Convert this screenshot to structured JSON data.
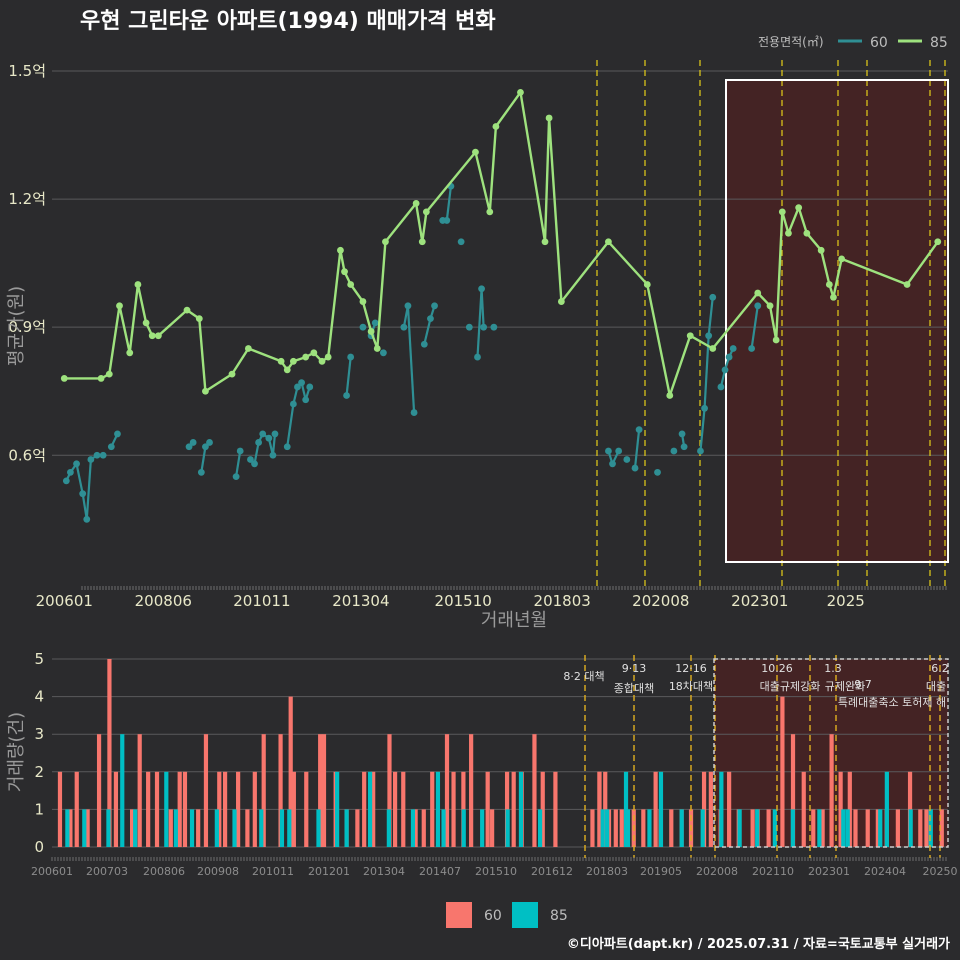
{
  "title": "우현 그린타운 아파트(1994) 매매가격 변화",
  "footer": "©디아파트(dapt.kr) / 2025.07.31 / 자료=국토교통부 실거래가",
  "colors": {
    "s60": "#2f8f94",
    "s85": "#9ee27e",
    "bar60": "#f8766d",
    "bar85": "#00bfc4",
    "policy": "#d8c21a",
    "highlight": "#5a1e1e"
  },
  "chart_data": [
    {
      "type": "line",
      "xlabel": "거래년월",
      "ylabel": "평균가(원)",
      "legend_title": "전용면적(㎡)",
      "legend_position": "top-right",
      "x_tick_labels": [
        "200601",
        "200806",
        "201011",
        "201304",
        "201510",
        "201803",
        "202008",
        "202301",
        "2025"
      ],
      "y_tick_labels": [
        "0.6억",
        "0.9억",
        "1.2억",
        "1.5억"
      ],
      "ylim": [
        0.35,
        1.55
      ],
      "series": [
        {
          "name": "60",
          "points": [
            [
              2006.05,
              0.54
            ],
            [
              2006.15,
              0.56
            ],
            [
              2006.3,
              0.58
            ],
            [
              2006.45,
              0.51
            ],
            [
              2006.55,
              0.45
            ],
            [
              2006.65,
              0.59
            ],
            [
              2006.8,
              0.6
            ],
            [
              2006.95,
              0.6
            ],
            [
              2007.15,
              0.62
            ],
            [
              2007.3,
              0.65
            ],
            [
              2009.05,
              0.62
            ],
            [
              2009.15,
              0.63
            ],
            [
              2009.35,
              0.56
            ],
            [
              2009.45,
              0.62
            ],
            [
              2009.55,
              0.63
            ],
            [
              2010.2,
              0.55
            ],
            [
              2010.3,
              0.61
            ],
            [
              2010.55,
              0.59
            ],
            [
              2010.65,
              0.58
            ],
            [
              2010.75,
              0.63
            ],
            [
              2010.85,
              0.65
            ],
            [
              2011.0,
              0.64
            ],
            [
              2011.1,
              0.6
            ],
            [
              2011.15,
              0.65
            ],
            [
              2011.45,
              0.62
            ],
            [
              2011.6,
              0.72
            ],
            [
              2011.7,
              0.76
            ],
            [
              2011.8,
              0.77
            ],
            [
              2011.9,
              0.73
            ],
            [
              2012.0,
              0.76
            ],
            [
              2012.9,
              0.74
            ],
            [
              2013.0,
              0.83
            ],
            [
              2013.3,
              0.9
            ],
            [
              2013.5,
              0.88
            ],
            [
              2013.6,
              0.91
            ],
            [
              2013.8,
              0.84
            ],
            [
              2014.3,
              0.9
            ],
            [
              2014.4,
              0.95
            ],
            [
              2014.55,
              0.7
            ],
            [
              2014.8,
              0.86
            ],
            [
              2014.95,
              0.92
            ],
            [
              2015.05,
              0.95
            ],
            [
              2015.25,
              1.15
            ],
            [
              2015.35,
              1.15
            ],
            [
              2015.45,
              1.23
            ],
            [
              2015.7,
              1.1
            ],
            [
              2015.9,
              0.9
            ],
            [
              2016.1,
              0.83
            ],
            [
              2016.2,
              0.99
            ],
            [
              2016.25,
              0.9
            ],
            [
              2016.5,
              0.9
            ],
            [
              2019.3,
              0.61
            ],
            [
              2019.4,
              0.58
            ],
            [
              2019.55,
              0.61
            ],
            [
              2019.75,
              0.59
            ],
            [
              2019.95,
              0.57
            ],
            [
              2020.05,
              0.66
            ],
            [
              2020.5,
              0.56
            ],
            [
              2020.9,
              0.61
            ],
            [
              2021.1,
              0.65
            ],
            [
              2021.15,
              0.62
            ],
            [
              2021.55,
              0.61
            ],
            [
              2021.65,
              0.71
            ],
            [
              2021.75,
              0.88
            ],
            [
              2021.85,
              0.97
            ],
            [
              2022.05,
              0.76
            ],
            [
              2022.15,
              0.8
            ],
            [
              2022.25,
              0.83
            ],
            [
              2022.35,
              0.85
            ],
            [
              2022.8,
              0.85
            ],
            [
              2022.95,
              0.95
            ]
          ]
        },
        {
          "name": "85",
          "points": [
            [
              2006.0,
              0.78
            ],
            [
              2006.9,
              0.78
            ],
            [
              2007.1,
              0.79
            ],
            [
              2007.35,
              0.95
            ],
            [
              2007.6,
              0.84
            ],
            [
              2007.8,
              1.0
            ],
            [
              2008.0,
              0.91
            ],
            [
              2008.15,
              0.88
            ],
            [
              2008.3,
              0.88
            ],
            [
              2009.0,
              0.94
            ],
            [
              2009.3,
              0.92
            ],
            [
              2009.45,
              0.75
            ],
            [
              2010.1,
              0.79
            ],
            [
              2010.5,
              0.85
            ],
            [
              2011.3,
              0.82
            ],
            [
              2011.45,
              0.8
            ],
            [
              2011.6,
              0.82
            ],
            [
              2011.9,
              0.83
            ],
            [
              2012.1,
              0.84
            ],
            [
              2012.3,
              0.82
            ],
            [
              2012.45,
              0.83
            ],
            [
              2012.75,
              1.08
            ],
            [
              2012.85,
              1.03
            ],
            [
              2013.0,
              1.0
            ],
            [
              2013.3,
              0.96
            ],
            [
              2013.5,
              0.89
            ],
            [
              2013.65,
              0.85
            ],
            [
              2013.85,
              1.1
            ],
            [
              2014.6,
              1.19
            ],
            [
              2014.75,
              1.1
            ],
            [
              2014.85,
              1.17
            ],
            [
              2016.05,
              1.31
            ],
            [
              2016.4,
              1.17
            ],
            [
              2016.55,
              1.37
            ],
            [
              2017.15,
              1.45
            ],
            [
              2017.75,
              1.1
            ],
            [
              2017.85,
              1.39
            ],
            [
              2018.15,
              0.96
            ],
            [
              2019.3,
              1.1
            ],
            [
              2020.25,
              1.0
            ],
            [
              2020.8,
              0.74
            ],
            [
              2021.3,
              0.88
            ],
            [
              2021.85,
              0.85
            ],
            [
              2022.95,
              0.98
            ],
            [
              2023.25,
              0.95
            ],
            [
              2023.4,
              0.87
            ],
            [
              2023.55,
              1.17
            ],
            [
              2023.7,
              1.12
            ],
            [
              2023.95,
              1.18
            ],
            [
              2024.15,
              1.12
            ],
            [
              2024.5,
              1.08
            ],
            [
              2024.7,
              1.0
            ],
            [
              2024.8,
              0.97
            ],
            [
              2025.0,
              1.06
            ],
            [
              2026.6,
              1.0
            ],
            [
              2027.35,
              1.1
            ]
          ]
        }
      ]
    },
    {
      "type": "bar",
      "ylabel": "거래량(건)",
      "x_tick_labels": [
        "200601",
        "200703",
        "200806",
        "200908",
        "201011",
        "201201",
        "201304",
        "201407",
        "201510",
        "201612",
        "201803",
        "201905",
        "202008",
        "202110",
        "202301",
        "202404",
        "20250"
      ],
      "y_tick_labels": [
        "0",
        "1",
        "2",
        "3",
        "4",
        "5"
      ],
      "ylim": [
        0,
        5
      ],
      "legend": [
        "60",
        "85"
      ],
      "annotations": [
        "8·2 대책",
        "9·13",
        "종합대책",
        "12·16",
        "18차대책",
        "10.26",
        "대출규제강화",
        "1.3",
        "규제완화",
        "9.7",
        "특례대출축소 토허제 해",
        "6.2",
        "대출"
      ],
      "series": [
        {
          "name": "60",
          "values": [
            2,
            1,
            2,
            1,
            3,
            5,
            2,
            1,
            3,
            2,
            2,
            1,
            2,
            2,
            1,
            3,
            2,
            2,
            2,
            1,
            2,
            3,
            3,
            4,
            2,
            2,
            3,
            3,
            2,
            1,
            1,
            2,
            2,
            3,
            2,
            2,
            1,
            1,
            2,
            3,
            2,
            2,
            3,
            2,
            1,
            2,
            2,
            2,
            3,
            2,
            2,
            2,
            2,
            1,
            1,
            2,
            1,
            1,
            1,
            1,
            2,
            1,
            1,
            1,
            1,
            2,
            2,
            1,
            2,
            1,
            1,
            1,
            1,
            4,
            3,
            2,
            1,
            1,
            3,
            2,
            2,
            1,
            1,
            1,
            1,
            1,
            2,
            1,
            1,
            1
          ]
        },
        {
          "name": "85",
          "values": [
            1,
            1,
            1,
            3,
            1,
            2,
            1,
            1,
            1,
            1,
            1,
            1,
            1,
            1,
            2,
            1,
            2,
            1,
            1,
            2,
            1,
            1,
            1,
            1,
            2,
            1,
            1,
            2,
            1,
            1,
            1,
            2,
            1,
            1,
            2,
            1,
            1,
            1,
            1,
            1,
            1,
            1,
            1,
            2,
            1,
            1
          ]
        }
      ]
    }
  ]
}
